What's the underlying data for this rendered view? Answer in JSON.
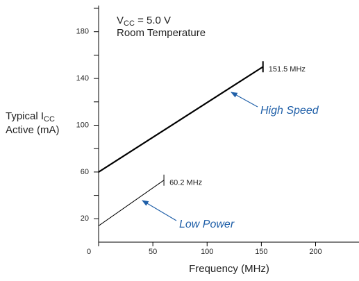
{
  "chart_data": {
    "type": "line",
    "condition_lines": [
      [
        "V",
        "CC",
        " = 5.0 V"
      ],
      "Room Temperature"
    ],
    "ylabel_lines": [
      [
        "Typical I",
        "CC"
      ],
      "Active (mA)"
    ],
    "xlabel": "Frequency (MHz)",
    "xlim": [
      0,
      240
    ],
    "xticks": [
      0,
      50,
      100,
      150,
      200
    ],
    "ylim": [
      0,
      200
    ],
    "yticks": [
      {
        "value": 20,
        "label": "20"
      },
      {
        "value": 40,
        "label": ""
      },
      {
        "value": 60,
        "label": "60"
      },
      {
        "value": 80,
        "label": ""
      },
      {
        "value": 100,
        "label": "100"
      },
      {
        "value": 120,
        "label": ""
      },
      {
        "value": 140,
        "label": "140"
      },
      {
        "value": 160,
        "label": ""
      },
      {
        "value": 180,
        "label": "180"
      },
      {
        "value": 200,
        "label": ""
      }
    ],
    "grid": false,
    "series": [
      {
        "name": "High Speed",
        "color": "#000000",
        "x": [
          0,
          151.5
        ],
        "values": [
          60,
          150
        ],
        "end_label": "151.5 MHz"
      },
      {
        "name": "Low Power",
        "color": "#000000",
        "x": [
          0,
          60.2
        ],
        "values": [
          14,
          53
        ],
        "end_label": "60.2 MHz"
      }
    ]
  }
}
